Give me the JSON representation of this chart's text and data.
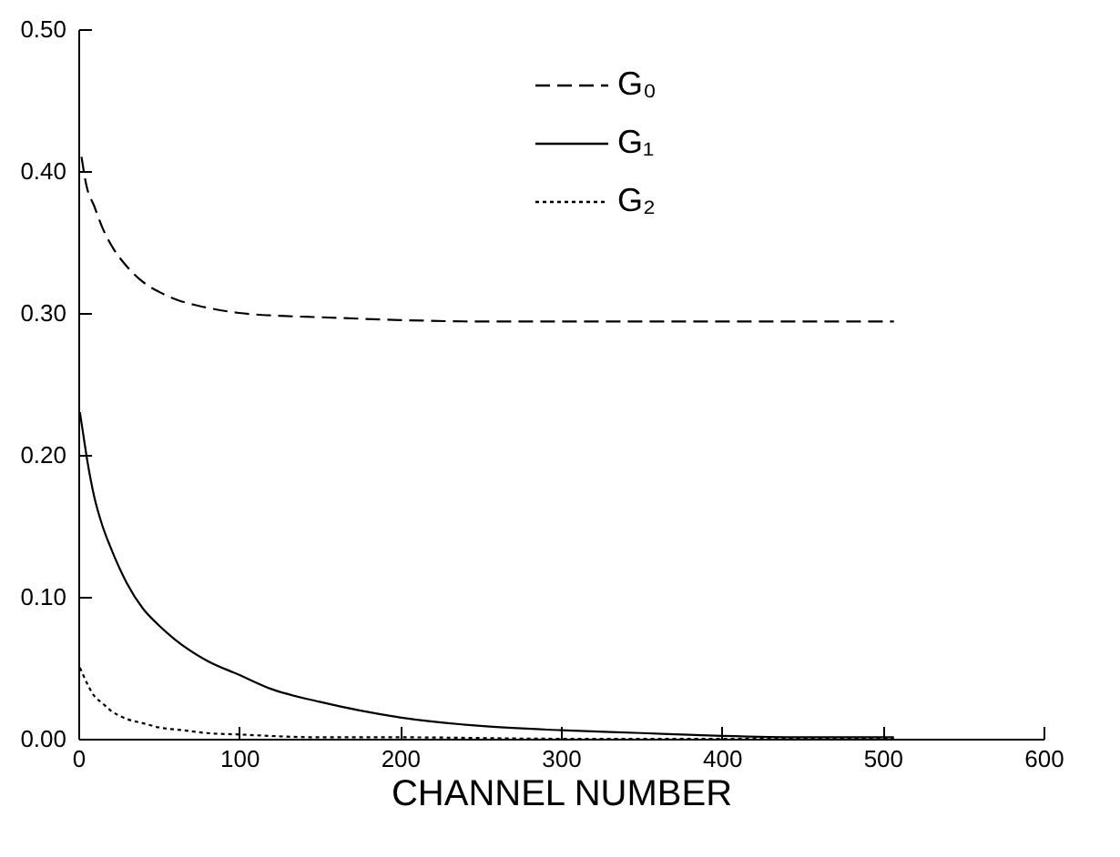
{
  "chart_data": {
    "type": "line",
    "xlabel": "CHANNEL NUMBER",
    "xlim": [
      0,
      600
    ],
    "xticks": [
      0,
      100,
      200,
      300,
      400,
      500,
      600
    ],
    "ylim": [
      0,
      0.5
    ],
    "yticks": [
      {
        "value": 0,
        "label": "0.00"
      },
      {
        "value": 0.1,
        "label": "0.10"
      },
      {
        "value": 0.2,
        "label": "0.20"
      },
      {
        "value": 0.3,
        "label": "0.30"
      },
      {
        "value": 0.4,
        "label": "0.40"
      },
      {
        "value": 0.5,
        "label": "0.50"
      }
    ],
    "grid": false,
    "legend": "top right",
    "series": [
      {
        "name": "G₀",
        "color": "#000000",
        "line_style": "dashed",
        "x": [
          2,
          5,
          10,
          15,
          22,
          30,
          40,
          50,
          62,
          75,
          100,
          125,
          150,
          200,
          250,
          300,
          400,
          507
        ],
        "values": [
          0.41,
          0.39,
          0.375,
          0.36,
          0.345,
          0.333,
          0.322,
          0.315,
          0.309,
          0.305,
          0.3,
          0.298,
          0.297,
          0.295,
          0.294,
          0.294,
          0.294,
          0.294
        ]
      },
      {
        "name": "G₁",
        "color": "#000000",
        "line_style": "solid",
        "x": [
          1,
          3,
          5,
          10,
          15,
          20,
          30,
          40,
          50,
          60,
          80,
          100,
          120,
          150,
          200,
          250,
          300,
          350,
          400,
          450,
          507
        ],
        "values": [
          0.23,
          0.215,
          0.2,
          0.17,
          0.15,
          0.135,
          0.11,
          0.092,
          0.08,
          0.07,
          0.055,
          0.045,
          0.035,
          0.026,
          0.015,
          0.009,
          0.006,
          0.004,
          0.002,
          0.001,
          0.001
        ]
      },
      {
        "name": "G₂",
        "color": "#000000",
        "line_style": "dotted",
        "x": [
          1,
          3,
          5,
          10,
          15,
          20,
          30,
          40,
          50,
          65,
          80,
          100,
          150,
          200,
          300,
          400,
          507
        ],
        "values": [
          0.05,
          0.045,
          0.04,
          0.03,
          0.025,
          0.02,
          0.014,
          0.011,
          0.008,
          0.006,
          0.004,
          0.003,
          0.001,
          0.001,
          0,
          0,
          0
        ]
      }
    ]
  }
}
